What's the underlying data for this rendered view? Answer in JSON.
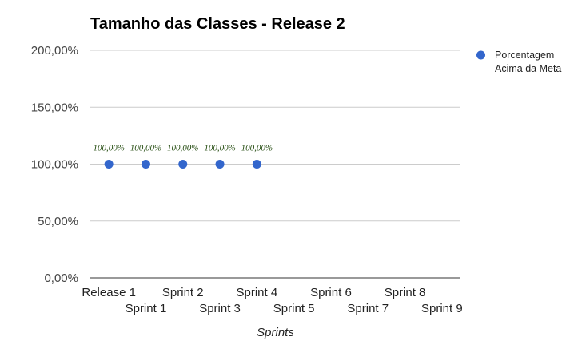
{
  "chart_data": {
    "type": "scatter",
    "title": "Tamanho das Classes - Release 2",
    "xlabel": "Sprints",
    "ylabel": "",
    "categories": [
      "Release 1",
      "Sprint 1",
      "Sprint 2",
      "Sprint 3",
      "Sprint 4",
      "Sprint 5",
      "Sprint 6",
      "Sprint 7",
      "Sprint 8",
      "Sprint 9"
    ],
    "ylim": [
      0,
      200
    ],
    "yticks": [
      "0,00%",
      "50,00%",
      "100,00%",
      "150,00%",
      "200,00%"
    ],
    "ytick_values": [
      0,
      50,
      100,
      150,
      200
    ],
    "grid": true,
    "legend_position": "right",
    "series": [
      {
        "name": "Porcentagem Acima da Meta",
        "legend_lines": [
          "Porcentagem",
          "Acima da Meta"
        ],
        "color": "#3366cc",
        "values": [
          100,
          100,
          100,
          100,
          100
        ],
        "data_labels": [
          "100,00%",
          "100,00%",
          "100,00%",
          "100,00%",
          "100,00%"
        ]
      }
    ]
  }
}
